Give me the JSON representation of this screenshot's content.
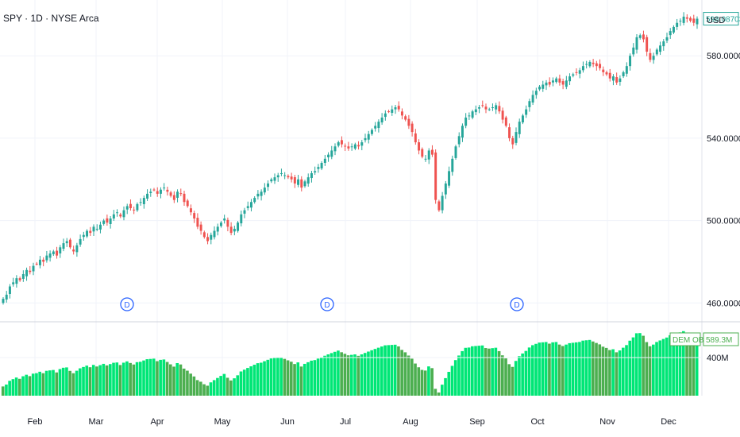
{
  "header": {
    "symbol_title": "SPY · 1D · NYSE Arca",
    "currency": "USD"
  },
  "colors": {
    "up": "#26a69a",
    "down": "#ef5350",
    "obv_rising": "#00e676",
    "obv_falling": "#4caf50",
    "grid": "#f0f3fa",
    "axis_text": "#131722",
    "event_marker": "#2962ff"
  },
  "indicator": {
    "name": "DEM OBV",
    "last_value_label": "589.3M"
  },
  "chart_data": [
    {
      "type": "candlestick",
      "title": "SPY · 1D · NYSE Arca",
      "ylabel": "USD",
      "ylim": [
        452,
        604
      ],
      "y_ticks": [
        460,
        500,
        540,
        580
      ],
      "y_tick_labels": [
        "460.00000",
        "500.00000",
        "540.00000",
        "580.00000"
      ],
      "last_price_label": "598.08703",
      "x_tick_labels": [
        "Feb",
        "Mar",
        "Apr",
        "May",
        "Jun",
        "Jul",
        "Aug",
        "Sep",
        "Oct",
        "Nov",
        "Dec"
      ],
      "grid": true,
      "event_markers": [
        {
          "label": "D",
          "date": "Mar 15"
        },
        {
          "label": "D",
          "date": "Jun 21"
        },
        {
          "label": "D",
          "date": "Sep 20"
        }
      ],
      "closes": [
        462,
        464,
        468,
        470,
        472,
        471,
        474,
        476,
        475,
        478,
        479,
        481,
        480,
        483,
        484,
        485,
        483,
        487,
        489,
        490,
        487,
        485,
        488,
        491,
        493,
        495,
        494,
        497,
        496,
        498,
        500,
        499,
        501,
        503,
        504,
        502,
        505,
        507,
        506,
        505,
        508,
        509,
        511,
        513,
        514,
        515,
        513,
        515,
        516,
        514,
        512,
        510,
        514,
        513,
        509,
        507,
        504,
        501,
        497,
        495,
        492,
        490,
        493,
        495,
        497,
        499,
        501,
        497,
        494,
        496,
        499,
        503,
        505,
        507,
        509,
        511,
        513,
        514,
        516,
        518,
        520,
        521,
        522,
        523,
        522,
        521,
        520,
        518,
        520,
        516,
        519,
        521,
        523,
        524,
        526,
        528,
        530,
        532,
        534,
        536,
        538,
        537,
        536,
        535,
        536,
        537,
        536,
        538,
        540,
        542,
        544,
        546,
        548,
        550,
        552,
        553,
        554,
        555,
        554,
        551,
        549,
        546,
        543,
        538,
        534,
        531,
        530,
        534,
        532,
        510,
        505,
        512,
        518,
        524,
        530,
        536,
        541,
        546,
        550,
        551,
        553,
        554,
        555,
        556,
        554,
        554,
        555,
        556,
        553,
        549,
        546,
        540,
        537,
        543,
        548,
        551,
        554,
        558,
        561,
        563,
        565,
        566,
        567,
        566,
        568,
        569,
        567,
        566,
        568,
        570,
        571,
        572,
        573,
        575,
        576,
        577,
        576,
        575,
        574,
        572,
        571,
        569,
        570,
        567,
        569,
        572,
        575,
        580,
        584,
        589,
        590,
        588,
        582,
        578,
        580,
        583,
        585,
        587,
        589,
        592,
        594,
        596,
        597,
        599,
        598,
        597,
        596,
        598
      ]
    },
    {
      "type": "bar",
      "title": "DEM OBV",
      "y_ticks": [
        400
      ],
      "y_tick_labels": [
        "400M"
      ],
      "last_value_label": "589.3M"
    }
  ]
}
